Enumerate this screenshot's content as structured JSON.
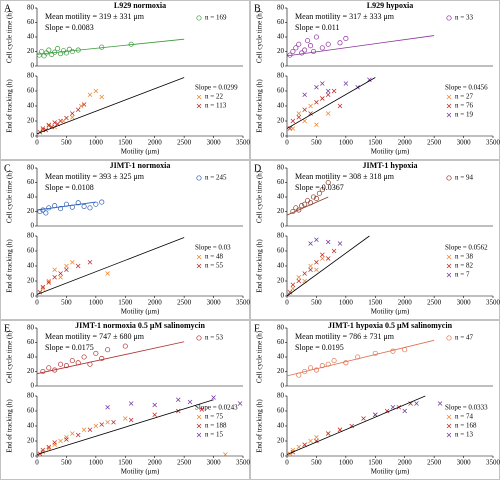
{
  "chart_data": [
    {
      "type": "scatter",
      "label": "A",
      "title": "L929 normoxia",
      "ylabel": "Cell cycle time (h)",
      "xlim": [
        0,
        3500
      ],
      "ylim": [
        0,
        80
      ],
      "yticks": [
        0,
        20,
        40,
        60,
        80
      ],
      "annotations": [
        "Mean motility = 319 ± 331 μm",
        "Slope = 0.0083"
      ],
      "series": [
        {
          "name": "n = 169",
          "color": "#3a9a3a",
          "marker": "circle",
          "x": [
            40,
            80,
            120,
            160,
            200,
            250,
            300,
            350,
            400,
            450,
            500,
            550,
            600,
            700,
            1100,
            1600
          ],
          "y": [
            15,
            20,
            14,
            18,
            22,
            16,
            19,
            24,
            17,
            21,
            18,
            23,
            20,
            22,
            26,
            30
          ]
        }
      ],
      "fit": {
        "color": "#3a9a3a",
        "x": [
          0,
          2500
        ],
        "y": [
          16,
          37
        ]
      }
    },
    {
      "type": "scatter",
      "ylabel": "End of tracking (h)",
      "xlabel": "Motility (μm)",
      "xlim": [
        0,
        3500
      ],
      "ylim": [
        0,
        80
      ],
      "yticks": [
        0,
        20,
        40,
        60,
        80
      ],
      "xticks": [
        0,
        500,
        1000,
        1500,
        2000,
        2500,
        3000,
        3500
      ],
      "annotations": [
        "Slope = 0.0299"
      ],
      "series": [
        {
          "name": "n = 22",
          "color": "#f08020",
          "marker": "cross",
          "x": [
            100,
            200,
            300,
            450,
            600,
            750,
            900,
            1000,
            1100
          ],
          "y": [
            8,
            15,
            12,
            20,
            25,
            40,
            55,
            60,
            52
          ]
        },
        {
          "name": "n = 113",
          "color": "#c02020",
          "marker": "cross",
          "x": [
            50,
            100,
            150,
            200,
            250,
            300,
            350,
            400,
            500,
            600,
            700,
            800
          ],
          "y": [
            5,
            10,
            8,
            14,
            12,
            18,
            16,
            20,
            24,
            30,
            35,
            42
          ]
        }
      ],
      "fit": {
        "color": "#000000",
        "x": [
          0,
          2500
        ],
        "y": [
          3,
          78
        ]
      }
    },
    {
      "type": "scatter",
      "label": "B",
      "title": "L929 hypoxia",
      "ylabel": "Cell cycle time (h)",
      "xlim": [
        0,
        3500
      ],
      "ylim": [
        0,
        80
      ],
      "yticks": [
        0,
        20,
        40,
        60,
        80
      ],
      "annotations": [
        "Mean motility = 317 ± 333 μm",
        "Slope = 0.011"
      ],
      "series": [
        {
          "name": "n = 33",
          "color": "#8b2f9b",
          "marker": "circle",
          "x": [
            50,
            100,
            150,
            200,
            250,
            300,
            350,
            400,
            450,
            500,
            600,
            700,
            900,
            1000
          ],
          "y": [
            15,
            20,
            25,
            30,
            18,
            22,
            35,
            28,
            20,
            40,
            25,
            30,
            32,
            38
          ]
        }
      ],
      "fit": {
        "color": "#8b2f9b",
        "x": [
          0,
          2500
        ],
        "y": [
          14,
          42
        ]
      }
    },
    {
      "type": "scatter",
      "ylabel": "End of tracking (h)",
      "xlabel": "Motility (μm)",
      "xlim": [
        0,
        3500
      ],
      "ylim": [
        0,
        80
      ],
      "yticks": [
        0,
        20,
        40,
        60,
        80
      ],
      "xticks": [
        0,
        500,
        1000,
        1500,
        2000,
        2500,
        3000,
        3500
      ],
      "annotations": [
        "Slope = 0.0456"
      ],
      "series": [
        {
          "name": "n = 27",
          "color": "#f08020",
          "marker": "cross",
          "x": [
            100,
            200,
            300,
            400,
            500,
            600,
            700
          ],
          "y": [
            10,
            30,
            20,
            40,
            15,
            50,
            30
          ]
        },
        {
          "name": "n = 76",
          "color": "#c02020",
          "marker": "cross",
          "x": [
            50,
            100,
            200,
            300,
            400,
            500,
            600,
            700,
            800,
            900
          ],
          "y": [
            10,
            20,
            25,
            35,
            30,
            45,
            50,
            55,
            60,
            40
          ]
        },
        {
          "name": "n = 19",
          "color": "#7030a0",
          "marker": "cross",
          "x": [
            300,
            500,
            600,
            700,
            1000,
            1200,
            1400
          ],
          "y": [
            55,
            65,
            70,
            60,
            70,
            65,
            75
          ]
        }
      ],
      "fit": {
        "color": "#000000",
        "x": [
          0,
          1500
        ],
        "y": [
          10,
          78
        ]
      }
    },
    {
      "type": "scatter",
      "label": "C",
      "title": "JIMT-1 normoxia",
      "ylabel": "Cell cycle time (h)",
      "xlim": [
        0,
        3500
      ],
      "ylim": [
        0,
        80
      ],
      "yticks": [
        0,
        20,
        40,
        60,
        80
      ],
      "annotations": [
        "Mean motility = 393 ± 325 μm",
        "Slope = 0.0108"
      ],
      "series": [
        {
          "name": "n = 245",
          "color": "#2a5cb8",
          "marker": "circle",
          "x": [
            50,
            100,
            150,
            200,
            300,
            400,
            500,
            600,
            700,
            800,
            900,
            1000,
            1100
          ],
          "y": [
            20,
            22,
            18,
            25,
            28,
            24,
            30,
            26,
            32,
            27,
            25,
            30,
            33
          ]
        }
      ],
      "fit": {
        "color": "#2a5cb8",
        "x": [
          0,
          1000
        ],
        "y": [
          22,
          33
        ]
      }
    },
    {
      "type": "scatter",
      "ylabel": "End of tracking (h)",
      "xlabel": "Motility (μm)",
      "xlim": [
        0,
        3500
      ],
      "ylim": [
        0,
        80
      ],
      "yticks": [
        0,
        20,
        40,
        60,
        80
      ],
      "xticks": [
        0,
        500,
        1000,
        1500,
        2000,
        2500,
        3000,
        3500
      ],
      "annotations": [
        "Slope = 0.03"
      ],
      "series": [
        {
          "name": "n = 48",
          "color": "#f08020",
          "marker": "cross",
          "x": [
            100,
            200,
            300,
            400,
            500,
            600,
            1200
          ],
          "y": [
            10,
            20,
            35,
            25,
            40,
            45,
            30
          ]
        },
        {
          "name": "n = 55",
          "color": "#c02020",
          "marker": "cross",
          "x": [
            50,
            100,
            200,
            300,
            400,
            500,
            700,
            900
          ],
          "y": [
            5,
            12,
            18,
            25,
            30,
            35,
            40,
            45
          ]
        }
      ],
      "fit": {
        "color": "#000000",
        "x": [
          0,
          2500
        ],
        "y": [
          2,
          78
        ]
      }
    },
    {
      "type": "scatter",
      "label": "D",
      "title": "JIMT-1 hypoxia",
      "ylabel": "Cell cycle time (h)",
      "xlim": [
        0,
        3500
      ],
      "ylim": [
        0,
        80
      ],
      "yticks": [
        0,
        20,
        40,
        60,
        80
      ],
      "annotations": [
        "Mean motility = 308 ± 318 μm",
        "Slope = 0.0367"
      ],
      "series": [
        {
          "name": "n = 94",
          "color": "#8b3a2a",
          "marker": "circle",
          "x": [
            100,
            150,
            200,
            250,
            300,
            350,
            400,
            450,
            500,
            550,
            600,
            700
          ],
          "y": [
            20,
            25,
            22,
            28,
            30,
            35,
            32,
            40,
            38,
            45,
            50,
            60
          ]
        }
      ],
      "fit": {
        "color": "#8b3a2a",
        "x": [
          0,
          700
        ],
        "y": [
          15,
          40
        ]
      }
    },
    {
      "type": "scatter",
      "ylabel": "End of tracking (h)",
      "xlabel": "Motility (μm)",
      "xlim": [
        0,
        3500
      ],
      "ylim": [
        0,
        80
      ],
      "yticks": [
        0,
        20,
        40,
        60,
        80
      ],
      "xticks": [
        0,
        500,
        1000,
        1500,
        2000,
        2500,
        3000,
        3500
      ],
      "annotations": [
        "Slope = 0.0562"
      ],
      "series": [
        {
          "name": "n = 38",
          "color": "#f08020",
          "marker": "cross",
          "x": [
            100,
            200,
            300,
            400,
            500,
            600
          ],
          "y": [
            10,
            25,
            20,
            40,
            35,
            50
          ]
        },
        {
          "name": "n = 82",
          "color": "#c02020",
          "marker": "cross",
          "x": [
            50,
            100,
            200,
            300,
            400,
            500,
            600,
            700,
            800
          ],
          "y": [
            5,
            15,
            20,
            30,
            35,
            45,
            55,
            50,
            60
          ]
        },
        {
          "name": "n = 7",
          "color": "#7030a0",
          "marker": "cross",
          "x": [
            400,
            500,
            700,
            900
          ],
          "y": [
            70,
            75,
            72,
            70
          ]
        }
      ],
      "fit": {
        "color": "#000000",
        "x": [
          0,
          1400
        ],
        "y": [
          0,
          80
        ]
      }
    },
    {
      "type": "scatter",
      "label": "E",
      "title": "JIMT-1 normoxia 0.5 μM salinomycin",
      "ylabel": "Cell cycle time (h)",
      "xlim": [
        0,
        3500
      ],
      "ylim": [
        0,
        80
      ],
      "yticks": [
        0,
        20,
        40,
        60,
        80
      ],
      "annotations": [
        "Mean motility = 747 ± 680 μm",
        "Slope = 0.0175"
      ],
      "series": [
        {
          "name": "n = 53",
          "color": "#b03030",
          "marker": "circle",
          "x": [
            100,
            200,
            300,
            400,
            500,
            600,
            700,
            800,
            900,
            1000,
            1100,
            1200,
            1500
          ],
          "y": [
            20,
            25,
            22,
            30,
            28,
            35,
            32,
            40,
            30,
            45,
            38,
            50,
            55
          ]
        }
      ],
      "fit": {
        "color": "#b03030",
        "x": [
          0,
          2500
        ],
        "y": [
          17,
          61
        ]
      }
    },
    {
      "type": "scatter",
      "ylabel": "End of tracking (h)",
      "xlabel": "Motility (μm)",
      "xlim": [
        0,
        3500
      ],
      "ylim": [
        0,
        80
      ],
      "yticks": [
        0,
        20,
        40,
        60,
        80
      ],
      "xticks": [
        0,
        500,
        1000,
        1500,
        2000,
        2500,
        3000,
        3500
      ],
      "annotations": [
        "Slope = 0.0243"
      ],
      "series": [
        {
          "name": "n = 75",
          "color": "#f08020",
          "marker": "cross",
          "x": [
            100,
            200,
            300,
            400,
            500,
            600,
            800,
            1000,
            1200,
            1500,
            3200
          ],
          "y": [
            5,
            10,
            15,
            20,
            25,
            30,
            35,
            40,
            45,
            50,
            2
          ]
        },
        {
          "name": "n = 188",
          "color": "#c02020",
          "marker": "cross",
          "x": [
            50,
            100,
            200,
            300,
            500,
            700,
            900,
            1100,
            1300,
            1600,
            2000,
            2400,
            2800
          ],
          "y": [
            3,
            8,
            12,
            18,
            22,
            28,
            35,
            42,
            45,
            48,
            55,
            60,
            62
          ]
        },
        {
          "name": "n = 15",
          "color": "#7030a0",
          "marker": "cross",
          "x": [
            1200,
            1600,
            2000,
            2400,
            2600,
            3000,
            3450
          ],
          "y": [
            65,
            70,
            68,
            75,
            72,
            78,
            70
          ]
        }
      ],
      "fit": {
        "color": "#000000",
        "x": [
          0,
          3000
        ],
        "y": [
          2,
          75
        ]
      }
    },
    {
      "type": "scatter",
      "label": "F",
      "title": "JIMT-1 hypoxia 0.5 μM salinomycin",
      "ylabel": "Cell cycle time (h)",
      "xlim": [
        0,
        3500
      ],
      "ylim": [
        0,
        80
      ],
      "yticks": [
        0,
        20,
        40,
        60,
        80
      ],
      "annotations": [
        "Mean motility = 786 ± 731 μm",
        "Slope = 0.0195"
      ],
      "series": [
        {
          "name": "n = 47",
          "color": "#e07050",
          "marker": "circle",
          "x": [
            200,
            300,
            400,
            500,
            600,
            700,
            800,
            1000,
            1200,
            1500,
            1800,
            2000
          ],
          "y": [
            15,
            20,
            25,
            22,
            28,
            30,
            35,
            32,
            40,
            45,
            48,
            50
          ]
        }
      ],
      "fit": {
        "color": "#e07050",
        "x": [
          0,
          2500
        ],
        "y": [
          14,
          63
        ]
      }
    },
    {
      "type": "scatter",
      "ylabel": "End of tracking (h)",
      "xlabel": "Motility (μm)",
      "xlim": [
        0,
        3500
      ],
      "ylim": [
        0,
        80
      ],
      "yticks": [
        0,
        20,
        40,
        60,
        80
      ],
      "xticks": [
        0,
        500,
        1000,
        1500,
        2000,
        2500,
        3000,
        3500
      ],
      "annotations": [
        "Slope = 0.0333"
      ],
      "series": [
        {
          "name": "n = 74",
          "color": "#f08020",
          "marker": "cross",
          "x": [
            50,
            100,
            200,
            300,
            400,
            500,
            700,
            900
          ],
          "y": [
            3,
            8,
            12,
            15,
            20,
            25,
            30,
            35
          ]
        },
        {
          "name": "n = 168",
          "color": "#c02020",
          "marker": "cross",
          "x": [
            100,
            300,
            500,
            700,
            900,
            1100,
            1300,
            1500,
            1700,
            1900,
            2100
          ],
          "y": [
            5,
            15,
            20,
            30,
            35,
            40,
            50,
            55,
            60,
            65,
            70
          ]
        },
        {
          "name": "n = 13",
          "color": "#7030a0",
          "marker": "cross",
          "x": [
            1500,
            1800,
            2000,
            2200,
            2600
          ],
          "y": [
            55,
            65,
            60,
            70,
            70
          ]
        }
      ],
      "fit": {
        "color": "#000000",
        "x": [
          0,
          2350
        ],
        "y": [
          2,
          80
        ]
      }
    }
  ]
}
